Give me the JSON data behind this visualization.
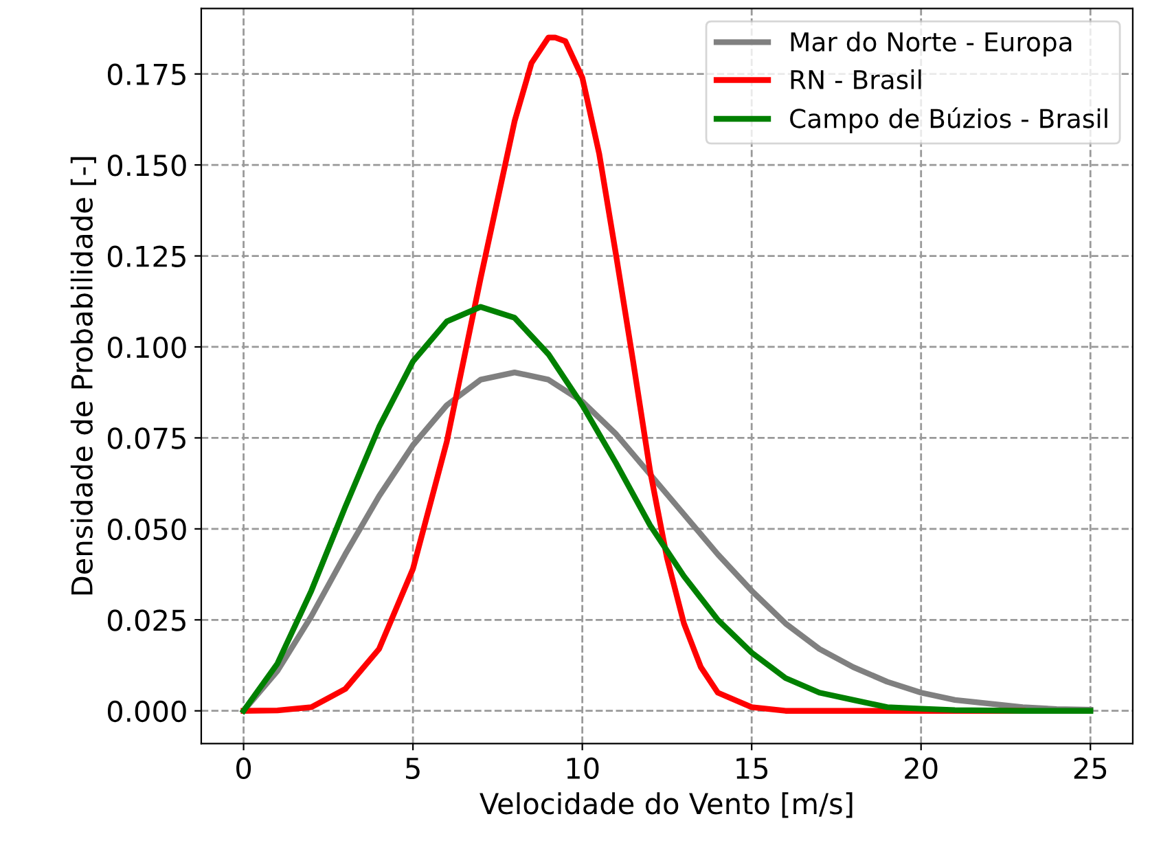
{
  "chart_data": {
    "type": "line",
    "xlabel": "Velocidade do Vento [m/s]",
    "ylabel": "Densidade de Probabilidade [-]",
    "series": [
      {
        "name": "Mar do Norte - Europa",
        "color": "#808080",
        "x": [
          0,
          1,
          2,
          3,
          4,
          5,
          6,
          7,
          8,
          9,
          10,
          11,
          12,
          13,
          14,
          15,
          16,
          17,
          18,
          19,
          20,
          21,
          22,
          23,
          24,
          25
        ],
        "values": [
          0,
          0.011,
          0.026,
          0.043,
          0.059,
          0.073,
          0.084,
          0.091,
          0.093,
          0.091,
          0.085,
          0.076,
          0.065,
          0.054,
          0.043,
          0.033,
          0.024,
          0.017,
          0.012,
          0.008,
          0.005,
          0.003,
          0.002,
          0.001,
          0.0005,
          0.0003
        ]
      },
      {
        "name": "RN - Brasil",
        "color": "#ff0000",
        "x": [
          0,
          1,
          2,
          3,
          4,
          5,
          6,
          7,
          8,
          8.5,
          9,
          9.2,
          9.5,
          10,
          10.5,
          11,
          11.5,
          12,
          12.5,
          13,
          13.5,
          14,
          15,
          16,
          17,
          18,
          19,
          20,
          21,
          22,
          23
        ],
        "values": [
          0,
          0.0001,
          0.001,
          0.006,
          0.017,
          0.039,
          0.074,
          0.119,
          0.162,
          0.178,
          0.185,
          0.185,
          0.184,
          0.174,
          0.153,
          0.125,
          0.096,
          0.066,
          0.042,
          0.024,
          0.012,
          0.005,
          0.001,
          0,
          0,
          0,
          0,
          0,
          0,
          0,
          0
        ]
      },
      {
        "name": "Campo de Búzios - Brasil",
        "color": "#008000",
        "x": [
          0,
          1,
          2,
          3,
          4,
          5,
          6,
          7,
          8,
          9,
          10,
          11,
          12,
          13,
          14,
          15,
          16,
          17,
          18,
          19,
          20,
          21,
          22,
          23,
          24,
          25
        ],
        "values": [
          0,
          0.013,
          0.033,
          0.056,
          0.078,
          0.096,
          0.107,
          0.111,
          0.108,
          0.098,
          0.084,
          0.068,
          0.051,
          0.037,
          0.025,
          0.016,
          0.009,
          0.005,
          0.003,
          0.001,
          0.0006,
          0.0002,
          0.0001,
          0,
          0,
          0
        ]
      }
    ],
    "xlim": [
      -1.25,
      26.25
    ],
    "ylim": [
      -0.009,
      0.193
    ],
    "xticks": [
      0,
      5,
      10,
      15,
      20,
      25
    ],
    "yticks": [
      {
        "value": 0,
        "label": "0.000"
      },
      {
        "value": 0.025,
        "label": "0.025"
      },
      {
        "value": 0.05,
        "label": "0.050"
      },
      {
        "value": 0.075,
        "label": "0.075"
      },
      {
        "value": 0.1,
        "label": "0.100"
      },
      {
        "value": 0.125,
        "label": "0.125"
      },
      {
        "value": 0.15,
        "label": "0.150"
      },
      {
        "value": 0.175,
        "label": "0.175"
      }
    ],
    "grid": true,
    "legend": "top right",
    "line_style": "solid",
    "marker": "none"
  }
}
